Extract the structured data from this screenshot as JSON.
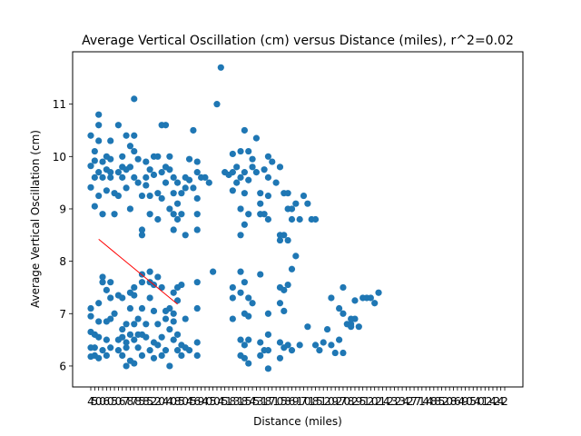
{
  "chart_data": {
    "type": "scatter",
    "title": "Average Vertical Oscillation (cm) versus Distance (miles), r^2=0.02",
    "xlabel": "Distance (miles)",
    "ylabel": "Average Vertical Oscillation (cm)",
    "ylim": [
      5.6,
      12.0
    ],
    "yticks": [
      6,
      7,
      8,
      9,
      10,
      11
    ],
    "grid": false,
    "colors": {
      "points": "#1f77b4",
      "fit_line": "#ff0000"
    },
    "trend_line": {
      "start": {
        "category_index": 2,
        "y": 8.42
      },
      "end": {
        "category_index": 22,
        "y": 7.18
      }
    },
    "x_categories": [
      "4",
      "5",
      "0",
      "0",
      "6",
      "0",
      "5",
      "0",
      "6",
      "7",
      "8",
      "7",
      "8",
      "5",
      "8",
      "5",
      "2",
      "2",
      "0",
      "4",
      "4",
      "0",
      "8",
      "5",
      "0",
      "4",
      "5",
      "6",
      "9",
      "4",
      "0",
      "5",
      "0",
      "4",
      "5",
      "1",
      "8",
      "3",
      "1",
      "8",
      "5",
      "4",
      "5",
      "3",
      "1",
      "8",
      "7",
      "1",
      "0",
      "5",
      "8",
      "6",
      "9",
      "1",
      "7",
      "0",
      "1",
      "8",
      "5",
      "1",
      "2",
      "0",
      "9",
      "2",
      "7",
      "0",
      "8",
      "2",
      "9",
      "5",
      "1",
      "2",
      "0",
      "2",
      "1",
      "4",
      "2",
      "3",
      "2",
      "3",
      "4",
      "2",
      "7",
      "7",
      "1",
      "4",
      "4",
      "8",
      "8",
      "5",
      "2",
      "0",
      "8",
      "6",
      "4",
      "9",
      "0",
      "5",
      "4",
      "0",
      "1",
      "2",
      "4",
      "2",
      "4",
      "2"
    ],
    "points": [
      [
        0,
        9.41
      ],
      [
        0,
        9.82
      ],
      [
        0,
        10.4
      ],
      [
        0,
        6.18
      ],
      [
        0,
        6.35
      ],
      [
        0,
        6.65
      ],
      [
        0,
        6.95
      ],
      [
        0,
        7.1
      ],
      [
        1,
        9.92
      ],
      [
        1,
        10.1
      ],
      [
        1,
        9.6
      ],
      [
        1,
        9.05
      ],
      [
        1,
        6.2
      ],
      [
        1,
        6.6
      ],
      [
        1,
        6.35
      ],
      [
        2,
        9.7
      ],
      [
        2,
        10.3
      ],
      [
        2,
        10.6
      ],
      [
        2,
        10.8
      ],
      [
        2,
        9.25
      ],
      [
        2,
        6.15
      ],
      [
        2,
        6.55
      ],
      [
        2,
        6.85
      ],
      [
        2,
        7.2
      ],
      [
        3,
        9.6
      ],
      [
        3,
        9.9
      ],
      [
        3,
        8.9
      ],
      [
        3,
        6.3
      ],
      [
        3,
        7.7
      ],
      [
        3,
        7.6
      ],
      [
        4,
        9.75
      ],
      [
        4,
        10.0
      ],
      [
        4,
        9.35
      ],
      [
        4,
        6.2
      ],
      [
        4,
        6.85
      ],
      [
        4,
        7.45
      ],
      [
        4,
        6.5
      ],
      [
        5,
        9.7
      ],
      [
        5,
        9.95
      ],
      [
        5,
        9.6
      ],
      [
        5,
        10.3
      ],
      [
        5,
        6.35
      ],
      [
        5,
        6.9
      ],
      [
        5,
        7.6
      ],
      [
        5,
        7.3
      ],
      [
        6,
        9.3
      ],
      [
        6,
        8.9
      ],
      [
        6,
        7.0
      ],
      [
        7,
        9.7
      ],
      [
        7,
        10.6
      ],
      [
        7,
        9.25
      ],
      [
        7,
        6.5
      ],
      [
        7,
        6.3
      ],
      [
        7,
        7.35
      ],
      [
        8,
        9.6
      ],
      [
        8,
        9.8
      ],
      [
        8,
        10.0
      ],
      [
        8,
        6.2
      ],
      [
        8,
        6.55
      ],
      [
        8,
        6.7
      ],
      [
        8,
        7.3
      ],
      [
        9,
        9.4
      ],
      [
        9,
        9.75
      ],
      [
        9,
        10.4
      ],
      [
        9,
        6.0
      ],
      [
        9,
        6.35
      ],
      [
        9,
        6.45
      ],
      [
        9,
        6.8
      ],
      [
        10,
        9.8
      ],
      [
        10,
        10.2
      ],
      [
        10,
        9.0
      ],
      [
        10,
        6.1
      ],
      [
        10,
        6.6
      ],
      [
        10,
        7.1
      ],
      [
        10,
        7.4
      ],
      [
        11,
        9.6
      ],
      [
        11,
        10.1
      ],
      [
        11,
        11.1
      ],
      [
        11,
        10.4
      ],
      [
        11,
        6.05
      ],
      [
        11,
        6.5
      ],
      [
        11,
        6.8
      ],
      [
        11,
        7.35
      ],
      [
        11,
        7.5
      ],
      [
        12,
        9.95
      ],
      [
        12,
        9.5
      ],
      [
        12,
        6.35
      ],
      [
        12,
        6.6
      ],
      [
        12,
        6.9
      ],
      [
        13,
        8.5
      ],
      [
        13,
        9.25
      ],
      [
        13,
        8.6
      ],
      [
        13,
        6.2
      ],
      [
        13,
        6.6
      ],
      [
        13,
        7.1
      ],
      [
        13,
        7.6
      ],
      [
        13,
        7.75
      ],
      [
        14,
        9.6
      ],
      [
        14,
        9.9
      ],
      [
        14,
        9.45
      ],
      [
        14,
        6.55
      ],
      [
        14,
        6.8
      ],
      [
        15,
        9.25
      ],
      [
        15,
        9.75
      ],
      [
        15,
        8.9
      ],
      [
        15,
        7.3
      ],
      [
        15,
        7.6
      ],
      [
        15,
        7.8
      ],
      [
        15,
        6.3
      ],
      [
        16,
        10.0
      ],
      [
        16,
        9.65
      ],
      [
        16,
        6.15
      ],
      [
        16,
        6.45
      ],
      [
        16,
        7.05
      ],
      [
        16,
        7.55
      ],
      [
        17,
        10.0
      ],
      [
        17,
        9.3
      ],
      [
        17,
        8.8
      ],
      [
        17,
        6.4
      ],
      [
        17,
        6.8
      ],
      [
        17,
        7.7
      ],
      [
        18,
        9.7
      ],
      [
        18,
        10.6
      ],
      [
        18,
        9.2
      ],
      [
        18,
        6.2
      ],
      [
        18,
        6.55
      ],
      [
        18,
        7.5
      ],
      [
        19,
        10.6
      ],
      [
        19,
        9.8
      ],
      [
        19,
        9.5
      ],
      [
        19,
        6.3
      ],
      [
        19,
        7.05
      ],
      [
        19,
        6.9
      ],
      [
        20,
        10.0
      ],
      [
        20,
        9.75
      ],
      [
        20,
        9.0
      ],
      [
        20,
        6.0
      ],
      [
        20,
        6.7
      ],
      [
        20,
        7.1
      ],
      [
        21,
        9.6
      ],
      [
        21,
        9.3
      ],
      [
        21,
        8.6
      ],
      [
        21,
        8.9
      ],
      [
        21,
        6.5
      ],
      [
        21,
        6.85
      ],
      [
        21,
        7.4
      ],
      [
        21,
        7.0
      ],
      [
        22,
        9.5
      ],
      [
        22,
        9.1
      ],
      [
        22,
        8.8
      ],
      [
        22,
        6.3
      ],
      [
        22,
        6.6
      ],
      [
        22,
        7.5
      ],
      [
        22,
        7.25
      ],
      [
        23,
        9.3
      ],
      [
        23,
        8.9
      ],
      [
        23,
        6.2
      ],
      [
        23,
        6.4
      ],
      [
        23,
        7.55
      ],
      [
        24,
        9.6
      ],
      [
        24,
        9.4
      ],
      [
        24,
        8.5
      ],
      [
        24,
        6.35
      ],
      [
        24,
        6.9
      ],
      [
        25,
        9.95
      ],
      [
        25,
        9.55
      ],
      [
        25,
        6.3
      ],
      [
        26,
        10.5
      ],
      [
        26,
        9.4
      ],
      [
        27,
        9.7
      ],
      [
        27,
        9.9
      ],
      [
        27,
        9.2
      ],
      [
        27,
        8.9
      ],
      [
        27,
        8.6
      ],
      [
        27,
        6.2
      ],
      [
        27,
        6.45
      ],
      [
        27,
        7.1
      ],
      [
        27,
        7.6
      ],
      [
        28,
        9.6
      ],
      [
        29,
        9.6
      ],
      [
        30,
        9.5
      ],
      [
        31,
        7.8
      ],
      [
        32,
        11.0
      ],
      [
        33,
        11.7
      ],
      [
        34,
        9.7
      ],
      [
        35,
        9.65
      ],
      [
        36,
        9.7
      ],
      [
        36,
        10.05
      ],
      [
        36,
        9.35
      ],
      [
        36,
        6.9
      ],
      [
        36,
        7.3
      ],
      [
        36,
        7.5
      ],
      [
        37,
        9.8
      ],
      [
        37,
        9.5
      ],
      [
        38,
        9.6
      ],
      [
        38,
        10.1
      ],
      [
        38,
        9.0
      ],
      [
        38,
        8.5
      ],
      [
        38,
        6.2
      ],
      [
        38,
        6.5
      ],
      [
        38,
        7.4
      ],
      [
        38,
        7.8
      ],
      [
        39,
        9.7
      ],
      [
        39,
        10.5
      ],
      [
        39,
        9.3
      ],
      [
        39,
        8.7
      ],
      [
        39,
        6.15
      ],
      [
        39,
        6.4
      ],
      [
        39,
        7.0
      ],
      [
        39,
        7.6
      ],
      [
        40,
        9.55
      ],
      [
        40,
        10.1
      ],
      [
        40,
        8.9
      ],
      [
        40,
        6.05
      ],
      [
        40,
        6.5
      ],
      [
        40,
        6.95
      ],
      [
        40,
        7.3
      ],
      [
        41,
        9.8
      ],
      [
        41,
        9.95
      ],
      [
        41,
        7.2
      ],
      [
        42,
        10.35
      ],
      [
        42,
        9.7
      ],
      [
        43,
        9.3
      ],
      [
        43,
        9.1
      ],
      [
        43,
        8.9
      ],
      [
        43,
        6.2
      ],
      [
        43,
        6.45
      ],
      [
        43,
        7.75
      ],
      [
        44,
        9.75
      ],
      [
        44,
        8.9
      ],
      [
        44,
        6.3
      ],
      [
        45,
        9.6
      ],
      [
        45,
        10.0
      ],
      [
        45,
        9.25
      ],
      [
        45,
        8.8
      ],
      [
        45,
        5.95
      ],
      [
        45,
        6.3
      ],
      [
        45,
        6.6
      ],
      [
        45,
        7.0
      ],
      [
        46,
        9.9
      ],
      [
        47,
        9.5
      ],
      [
        48,
        9.8
      ],
      [
        48,
        8.5
      ],
      [
        48,
        8.4
      ],
      [
        48,
        6.15
      ],
      [
        48,
        6.45
      ],
      [
        48,
        7.2
      ],
      [
        48,
        7.5
      ],
      [
        49,
        9.3
      ],
      [
        49,
        8.5
      ],
      [
        49,
        6.35
      ],
      [
        49,
        7.45
      ],
      [
        49,
        7.05
      ],
      [
        50,
        9.3
      ],
      [
        50,
        9.0
      ],
      [
        50,
        8.4
      ],
      [
        50,
        6.4
      ],
      [
        50,
        7.55
      ],
      [
        51,
        9.0
      ],
      [
        51,
        8.8
      ],
      [
        51,
        7.85
      ],
      [
        51,
        6.3
      ],
      [
        52,
        9.1
      ],
      [
        52,
        8.1
      ],
      [
        53,
        8.8
      ],
      [
        53,
        6.4
      ],
      [
        54,
        9.25
      ],
      [
        55,
        9.1
      ],
      [
        55,
        6.75
      ],
      [
        56,
        8.8
      ],
      [
        57,
        8.8
      ],
      [
        57,
        6.4
      ],
      [
        58,
        6.3
      ],
      [
        59,
        6.45
      ],
      [
        60,
        6.7
      ],
      [
        61,
        6.4
      ],
      [
        61,
        7.3
      ],
      [
        62,
        6.25
      ],
      [
        63,
        6.5
      ],
      [
        63,
        7.1
      ],
      [
        64,
        7.5
      ],
      [
        64,
        6.25
      ],
      [
        64,
        7.0
      ],
      [
        65,
        6.8
      ],
      [
        66,
        6.9
      ],
      [
        66,
        6.8
      ],
      [
        66,
        6.75
      ],
      [
        67,
        7.25
      ],
      [
        67,
        6.9
      ],
      [
        68,
        6.75
      ],
      [
        69,
        7.3
      ],
      [
        70,
        7.3
      ],
      [
        71,
        7.3
      ],
      [
        72,
        7.2
      ],
      [
        73,
        7.4
      ]
    ]
  }
}
